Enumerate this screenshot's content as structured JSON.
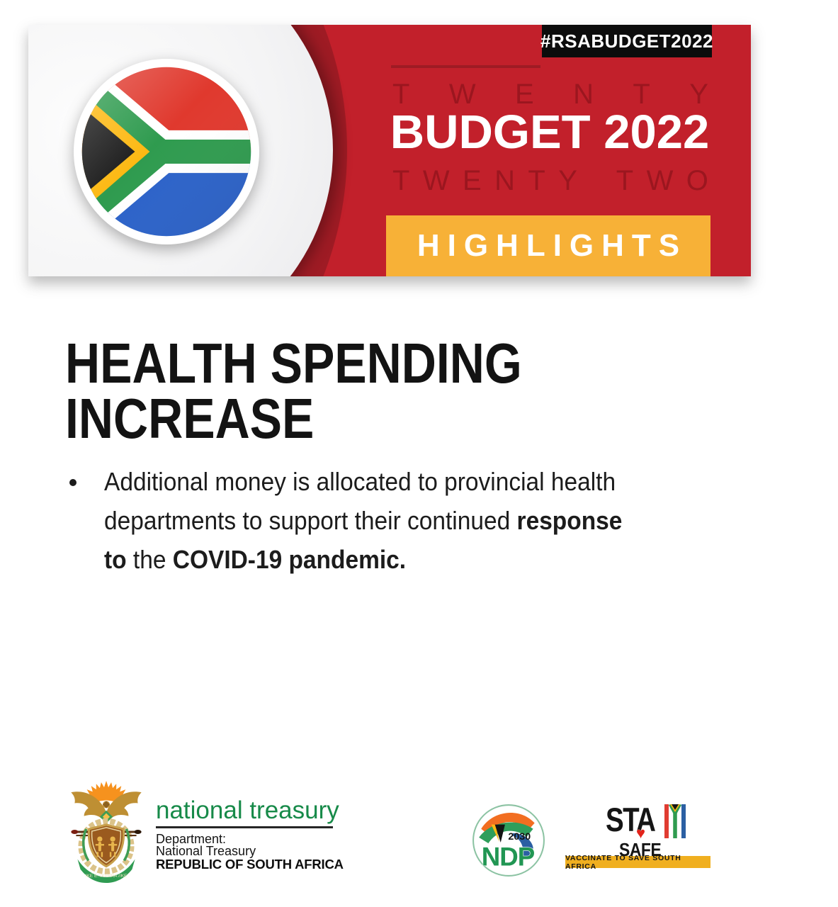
{
  "banner": {
    "hashtag": "#RSABUDGET2022",
    "word_top": "TWENTY",
    "title": "BUDGET 2022",
    "word_bottom": "TWENTY TWO",
    "highlights_label": "HIGHLIGHTS",
    "colors": {
      "red": "#C2202B",
      "dark_red": "#9E1B24",
      "yellow": "#F7B137",
      "badge_black": "#0C0C0C"
    }
  },
  "heading": {
    "line1": "HEALTH SPENDING",
    "line2": "INCREASE"
  },
  "bullets": [
    {
      "lines": [
        [
          {
            "t": "Additional money is allocated to provincial health",
            "b": false
          }
        ],
        [
          {
            "t": "departments to support their continued ",
            "b": false
          },
          {
            "t": "response",
            "b": true
          }
        ],
        [
          {
            "t": "to",
            "b": true
          },
          {
            "t": " the ",
            "b": false
          },
          {
            "t": "COVID-19 pandemic.",
            "b": true
          }
        ]
      ]
    }
  ],
  "footer": {
    "treasury": {
      "brand": "national treasury",
      "department_label": "Department:",
      "department_name": "National Treasury",
      "country": "REPUBLIC OF SOUTH AFRICA",
      "motto": "!KE E: /XARRA //KE",
      "brand_color": "#178A49"
    },
    "ndp": {
      "year": "2030",
      "acronym": "NDP",
      "green": "#219653"
    },
    "staysafe": {
      "sta": "STA",
      "safe": "SAFE",
      "heart_glyph": "♥",
      "tagline": "VACCINATE TO SAVE SOUTH AFRICA",
      "bar_color": "#F0AF1F"
    }
  }
}
